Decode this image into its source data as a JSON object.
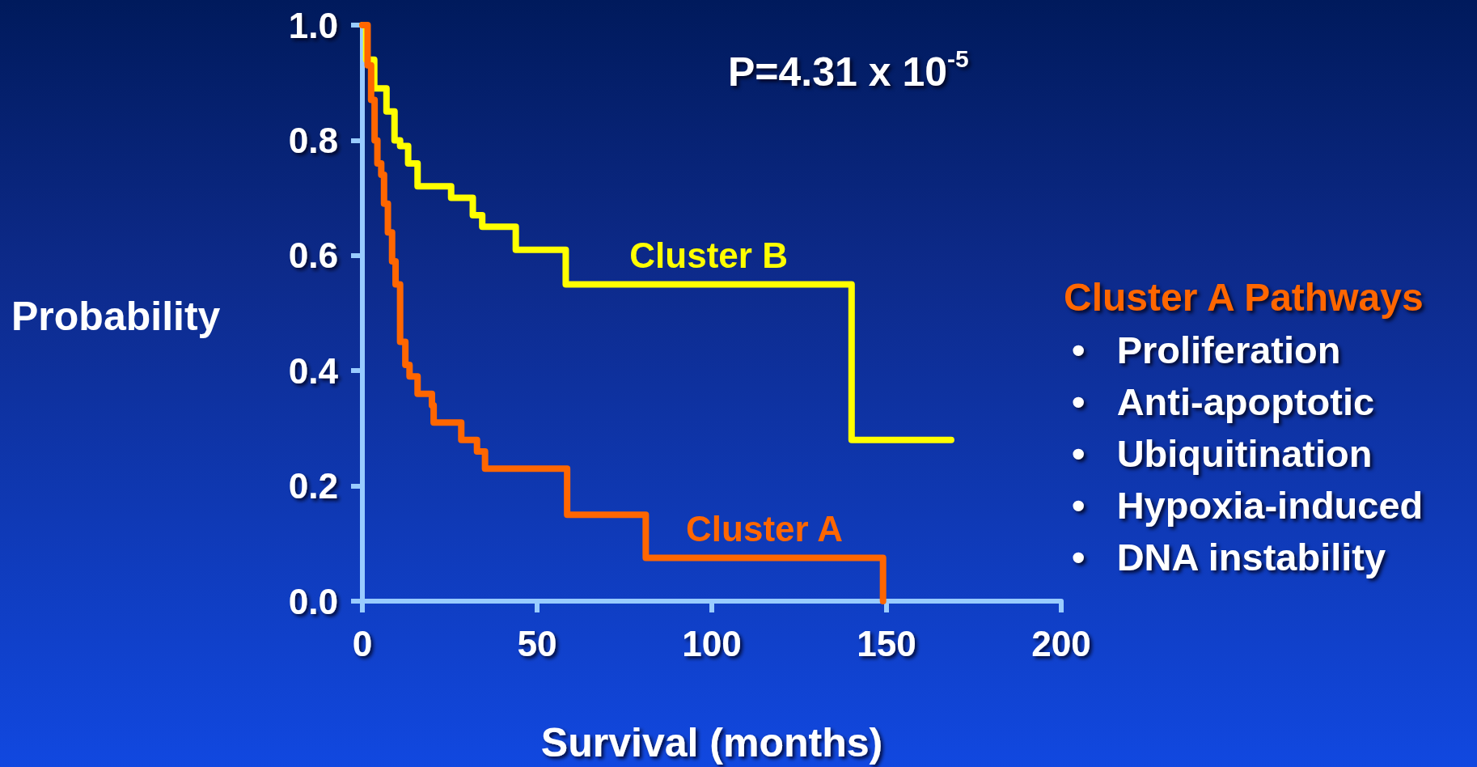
{
  "chart_data": {
    "type": "step",
    "xlabel": "Survival (months)",
    "ylabel": "Probability",
    "x": [
      0,
      1.1,
      3.4,
      6.9,
      9.2,
      10.8,
      13.1,
      15.8,
      25.4,
      31.6,
      34.3,
      43.9,
      58.2,
      140,
      168.5
    ],
    "series": [
      {
        "name": "Cluster B",
        "color": "#ffff00",
        "values": [
          1.0,
          0.94,
          0.89,
          0.85,
          0.8,
          0.79,
          0.76,
          0.72,
          0.7,
          0.67,
          0.65,
          0.61,
          0.55,
          0.28,
          0.28
        ]
      },
      {
        "name": "Cluster A",
        "color": "#ff6600",
        "x": [
          0,
          1.5,
          2.5,
          3.5,
          4.3,
          5.4,
          6.2,
          7.3,
          8.5,
          9.5,
          10.8,
          12.3,
          13.5,
          15.8,
          19.9,
          20.4,
          28.3,
          32.8,
          35.1,
          58.6,
          81.1,
          149
        ],
        "values": [
          1.0,
          0.93,
          0.87,
          0.8,
          0.76,
          0.74,
          0.69,
          0.64,
          0.59,
          0.55,
          0.45,
          0.41,
          0.39,
          0.36,
          0.34,
          0.31,
          0.28,
          0.26,
          0.23,
          0.15,
          0.075,
          0
        ]
      }
    ],
    "xlim": [
      0,
      200
    ],
    "xticks": [
      0,
      50,
      100,
      150,
      200
    ],
    "ylim": [
      0,
      1
    ],
    "yticks": [
      {
        "value": 0,
        "label": "0.0"
      },
      {
        "value": 0.2,
        "label": "0.2"
      },
      {
        "value": 0.4,
        "label": "0.4"
      },
      {
        "value": 0.6,
        "label": "0.6"
      },
      {
        "value": 0.8,
        "label": "0.8"
      },
      {
        "value": 1,
        "label": "1.0"
      }
    ],
    "grid": false,
    "legend": false,
    "marker": "none",
    "line_style": "solid",
    "annotations": [
      "P=4.31 x 10$^{-5}$",
      "Cluster A Pathways",
      "• Proliferation",
      "• Anti-apoptotic",
      "• Ubiquitination",
      "• Hypoxia-induced",
      "• DNA instability"
    ]
  }
}
